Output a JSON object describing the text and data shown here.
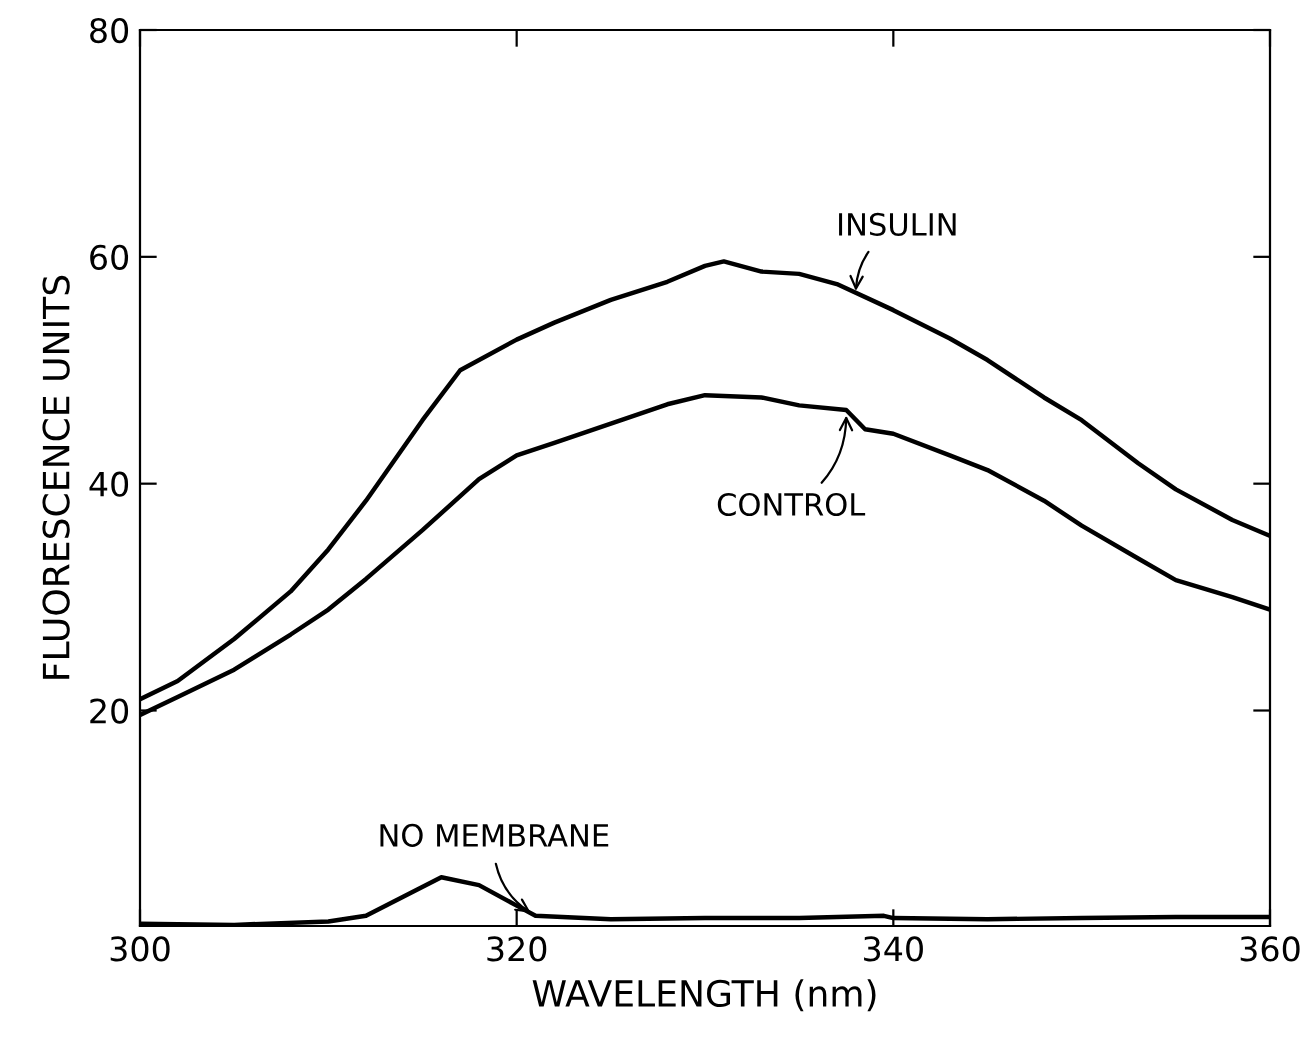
{
  "chart_data": {
    "type": "line",
    "xlabel": "WAVELENGTH (nm)",
    "ylabel": "FLUORESCENCE UNITS",
    "xlim": [
      300,
      360
    ],
    "ylim": [
      1,
      80
    ],
    "xticks": [
      300,
      320,
      340,
      360
    ],
    "yticks": [
      20,
      40,
      60,
      80
    ],
    "grid": false,
    "legend": false,
    "marker": "none",
    "line_style": "solid",
    "series": [
      {
        "color": "#000000",
        "x": [
          300,
          302,
          305,
          308,
          310,
          312,
          315,
          317,
          320,
          322,
          325,
          328,
          330,
          331,
          333,
          335,
          337,
          340,
          343,
          345,
          348,
          350,
          353,
          355,
          358,
          360
        ],
        "values": [
          21,
          22.6,
          26.3,
          30.5,
          34.2,
          38.5,
          45.6,
          50,
          52.7,
          54.2,
          56.2,
          57.8,
          59.2,
          59.6,
          58.7,
          58.5,
          57.6,
          55.3,
          52.8,
          50.9,
          47.6,
          45.6,
          41.8,
          39.5,
          36.8,
          35.4
        ]
      },
      {
        "color": "#000000",
        "x": [
          300,
          302,
          305,
          308,
          310,
          312,
          315,
          318,
          320,
          322,
          325,
          328,
          330,
          333,
          335,
          337.5,
          338.5,
          340,
          343,
          345,
          348,
          350,
          353,
          355,
          358,
          360
        ],
        "values": [
          19.6,
          21.2,
          23.6,
          26.7,
          28.9,
          31.6,
          35.9,
          40.4,
          42.5,
          43.6,
          45.3,
          47,
          47.8,
          47.6,
          46.9,
          46.5,
          44.8,
          44.4,
          42.5,
          41.2,
          38.5,
          36.3,
          33.4,
          31.5,
          30,
          28.9
        ]
      },
      {
        "color": "#000000",
        "x": [
          300,
          305,
          310,
          312,
          314,
          316,
          318,
          320,
          321,
          325,
          330,
          335,
          339.5,
          340,
          345,
          350,
          355,
          360
        ],
        "values": [
          1.2,
          1.1,
          1.4,
          1.9,
          3.6,
          5.3,
          4.6,
          2.8,
          1.9,
          1.6,
          1.7,
          1.7,
          1.9,
          1.7,
          1.6,
          1.7,
          1.8,
          1.8
        ]
      }
    ],
    "annotations": [
      {
        "text": "INSULIN",
        "x": 338,
        "y": 56.5
      },
      {
        "text": "CONTROL",
        "x": 337.5,
        "y": 46.5
      },
      {
        "text": "NO MEMBRANE",
        "x": 321,
        "y": 1.9
      }
    ]
  }
}
